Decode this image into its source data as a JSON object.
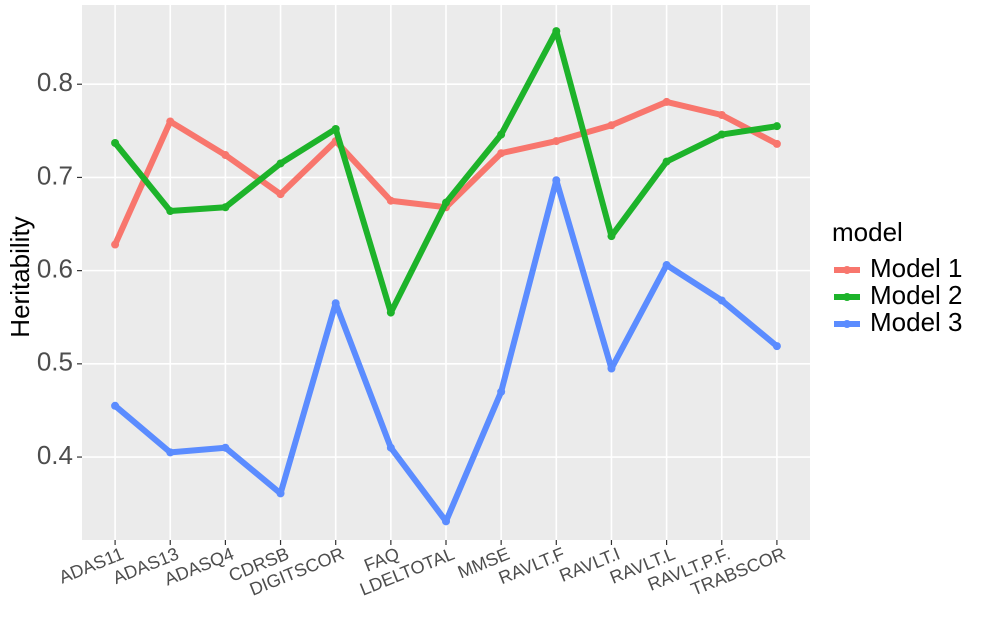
{
  "chart_data": {
    "type": "line",
    "y_label": "Heritability",
    "legend_title": "model",
    "categories": [
      "ADAS11",
      "ADAS13",
      "ADASQ4",
      "CDRSB",
      "DIGITSCOR",
      "FAQ",
      "LDELTOTAL",
      "MMSE",
      "RAVLT.F",
      "RAVLT.I",
      "RAVLT.L",
      "RAVLT.P.F.",
      "TRABSCOR"
    ],
    "series": [
      {
        "name": "Model 1",
        "color": "#f8766d",
        "values": [
          0.628,
          0.76,
          0.724,
          0.682,
          0.739,
          0.675,
          0.668,
          0.726,
          0.739,
          0.756,
          0.781,
          0.767,
          0.736
        ]
      },
      {
        "name": "Model 2",
        "color": "#1db32a",
        "values": [
          0.737,
          0.664,
          0.668,
          0.715,
          0.752,
          0.555,
          0.673,
          0.746,
          0.857,
          0.637,
          0.717,
          0.746,
          0.755
        ]
      },
      {
        "name": "Model 3",
        "color": "#5b8cff",
        "values": [
          0.455,
          0.405,
          0.41,
          0.361,
          0.565,
          0.41,
          0.331,
          0.47,
          0.697,
          0.495,
          0.606,
          0.568,
          0.519
        ]
      }
    ],
    "ylim": [
      0.311,
      0.885
    ],
    "yticks": [
      0.4,
      0.5,
      0.6,
      0.7,
      0.8
    ],
    "grid": true,
    "legend_position": "right"
  }
}
